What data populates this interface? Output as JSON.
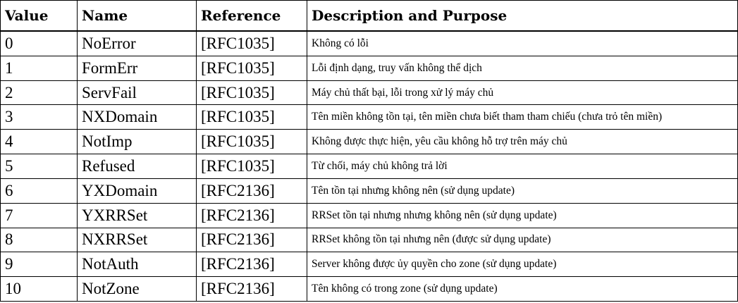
{
  "table": {
    "headers": [
      "Value",
      "Name",
      "Reference",
      "Description and Purpose"
    ],
    "rows": [
      [
        "0",
        "NoError",
        "[RFC1035]",
        "Không có lỗi"
      ],
      [
        "1",
        "FormErr",
        "[RFC1035]",
        "Lỗi định dạng, truy vấn không thể dịch"
      ],
      [
        "2",
        "ServFail",
        "[RFC1035]",
        "Máy chủ thất bại, lỗi trong xử lý máy chủ"
      ],
      [
        "3",
        "NXDomain",
        "[RFC1035]",
        "Tên miền không tồn tại, tên miền chưa biết tham tham chiếu (chưa trỏ tên miền)"
      ],
      [
        "4",
        "NotImp",
        "[RFC1035]",
        "Không được thực hiện, yêu cầu không hỗ trợ trên máy chủ"
      ],
      [
        "5",
        "Refused",
        "[RFC1035]",
        "Từ chối, máy chủ không trả lời"
      ],
      [
        "6",
        "YXDomain",
        "[RFC2136]",
        "Tên tồn tại nhưng không nên (sử dụng update)"
      ],
      [
        "7",
        "YXRRSet",
        "[RFC2136]",
        "RRSet tồn tại nhưng nhưng không nên (sử dụng update)"
      ],
      [
        "8",
        "NXRRSet",
        "[RFC2136]",
        "RRSet không tồn tại nhưng nên (được sử dụng update)"
      ],
      [
        "9",
        "NotAuth",
        "[RFC2136]",
        "Server không được ủy quyền cho zone (sử dụng update)"
      ],
      [
        "10",
        "NotZone",
        "[RFC2136]",
        "Tên không có trong zone (sử dụng update)"
      ]
    ]
  }
}
